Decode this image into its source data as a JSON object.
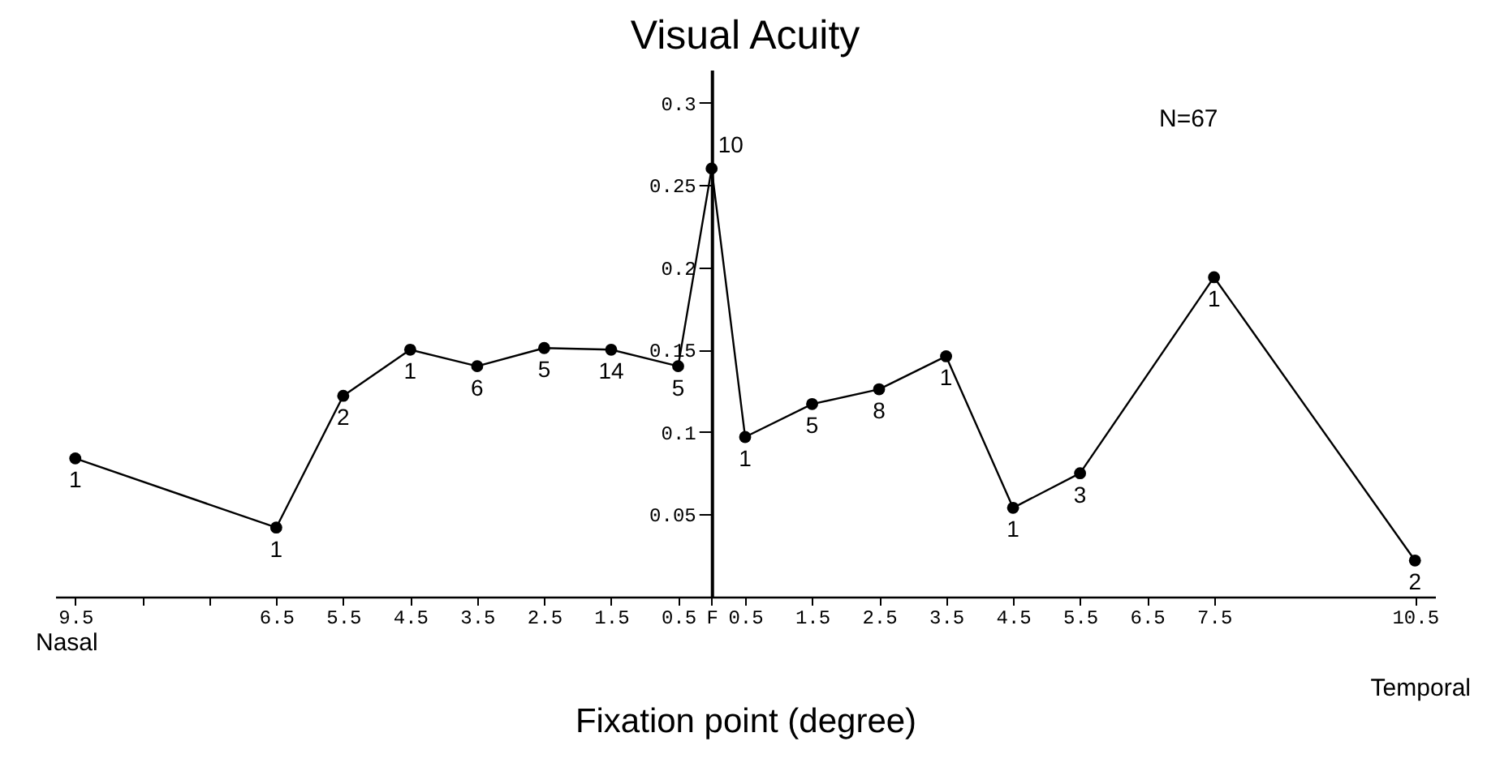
{
  "chart_data": {
    "type": "line",
    "title": "Visual Acuity",
    "xlabel": "Fixation point (degree)",
    "x": [
      -9.5,
      -6.5,
      -5.5,
      -4.5,
      -3.5,
      -2.5,
      -1.5,
      -0.5,
      0,
      0.5,
      1.5,
      2.5,
      3.5,
      4.5,
      5.5,
      7.5,
      10.5
    ],
    "series": [
      {
        "color": "#000000",
        "values": [
          0.084,
          0.042,
          0.122,
          0.15,
          0.14,
          0.151,
          0.15,
          0.14,
          0.26,
          0.097,
          0.117,
          0.126,
          0.146,
          0.054,
          0.075,
          0.194,
          0.022
        ]
      }
    ],
    "xlim": [
      -9.8,
      10.8
    ],
    "xticks": [
      {
        "value": -9.5,
        "label": "9.5"
      },
      {
        "value": -8.5,
        "label": null
      },
      {
        "value": -7.5,
        "label": null
      },
      {
        "value": -6.5,
        "label": "6.5"
      },
      {
        "value": -5.5,
        "label": "5.5"
      },
      {
        "value": -4.5,
        "label": "4.5"
      },
      {
        "value": -3.5,
        "label": "3.5"
      },
      {
        "value": -2.5,
        "label": "2.5"
      },
      {
        "value": -1.5,
        "label": "1.5"
      },
      {
        "value": -0.5,
        "label": "0.5"
      },
      {
        "value": 0,
        "label": "F"
      },
      0.5,
      1.5,
      2.5,
      3.5,
      4.5,
      5.5,
      6.5,
      7.5,
      10.5
    ],
    "ylim": [
      0,
      0.32
    ],
    "yticks": [
      0.05,
      0.1,
      0.15,
      0.2,
      0.25,
      0.3
    ],
    "grid": false,
    "marker": "circle",
    "line_style": "solid",
    "annotations": [
      "N=67",
      "Nasal",
      "Temporal",
      {
        "text": "1",
        "x": -9.5,
        "y": 0.084
      },
      {
        "text": "1",
        "x": -6.5,
        "y": 0.042
      },
      {
        "text": "2",
        "x": -5.5,
        "y": 0.122
      },
      {
        "text": "1",
        "x": -4.5,
        "y": 0.15
      },
      {
        "text": "6",
        "x": -3.5,
        "y": 0.14
      },
      {
        "text": "5",
        "x": -2.5,
        "y": 0.151
      },
      {
        "text": "14",
        "x": -1.5,
        "y": 0.15
      },
      {
        "text": "5",
        "x": -0.5,
        "y": 0.14
      },
      {
        "text": "10",
        "x": 0,
        "y": 0.26
      },
      {
        "text": "1",
        "x": 0.5,
        "y": 0.097
      },
      {
        "text": "5",
        "x": 1.5,
        "y": 0.117
      },
      {
        "text": "8",
        "x": 2.5,
        "y": 0.126
      },
      {
        "text": "1",
        "x": 3.5,
        "y": 0.146
      },
      {
        "text": "1",
        "x": 4.5,
        "y": 0.054
      },
      {
        "text": "3",
        "x": 5.5,
        "y": 0.075
      },
      {
        "text": "1",
        "x": 7.5,
        "y": 0.194
      },
      {
        "text": "2",
        "x": 10.5,
        "y": 0.022
      }
    ]
  }
}
